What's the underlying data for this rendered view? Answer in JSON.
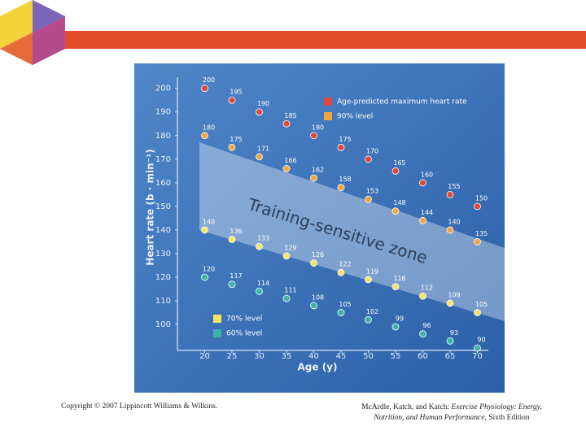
{
  "chart_data": {
    "type": "scatter",
    "y_label": "Heart rate (b · min⁻¹)",
    "x_label": "Age (y)",
    "annotation": "Training-sensitive zone",
    "x": [
      20,
      25,
      30,
      35,
      40,
      45,
      50,
      55,
      60,
      65,
      70
    ],
    "xlim": [
      15,
      75
    ],
    "xticks": [
      20,
      25,
      30,
      35,
      40,
      45,
      50,
      55,
      60,
      65,
      70
    ],
    "ylim": [
      89,
      203
    ],
    "yticks": [
      100,
      110,
      120,
      130,
      140,
      150,
      160,
      170,
      180,
      190,
      200
    ],
    "series": [
      {
        "name": "Age-predicted maximum heart rate",
        "color": "#e0483c",
        "values": [
          200,
          195,
          190,
          185,
          180,
          175,
          170,
          165,
          160,
          155,
          150
        ]
      },
      {
        "name": "90% level",
        "color": "#f2a540",
        "values": [
          180,
          175,
          171,
          166,
          162,
          158,
          153,
          148,
          144,
          140,
          135
        ]
      },
      {
        "name": "70% level",
        "color": "#f3e565",
        "values": [
          140,
          136,
          133,
          129,
          126,
          122,
          119,
          116,
          112,
          109,
          105
        ]
      },
      {
        "name": "60% level",
        "color": "#3fb3aa",
        "values": [
          120,
          117,
          114,
          111,
          108,
          105,
          102,
          99,
          96,
          93,
          90
        ]
      }
    ]
  },
  "footer": {
    "copyright": "Copyright © 2007 Lippincott Williams & Wilkins.",
    "citation_authors": "McArdle, Katch, and Katch: ",
    "citation_title": "Exercise Physiology: Energy, Nutrition, and Human Performance,",
    "citation_edition": "Sixth Edition"
  }
}
